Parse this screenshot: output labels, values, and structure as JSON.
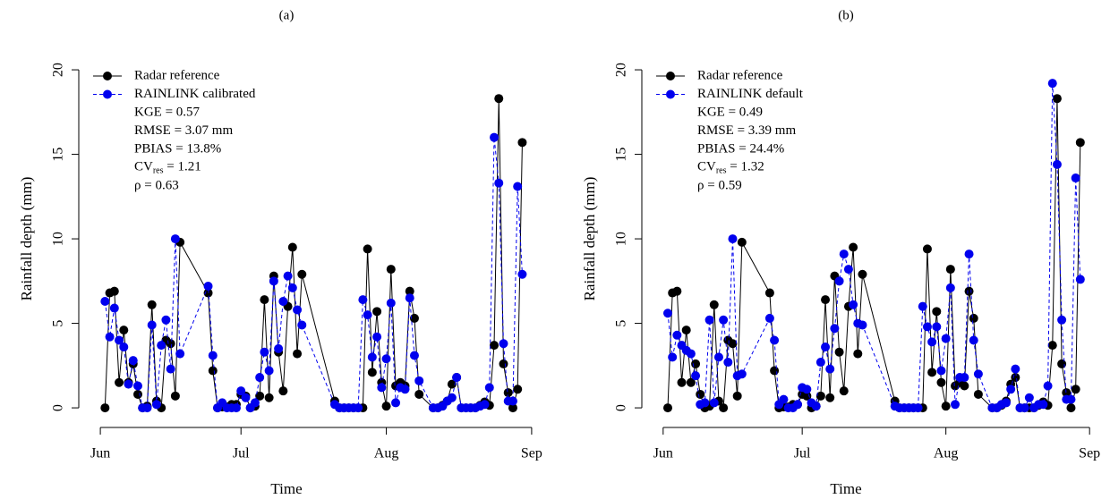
{
  "chart_data": [
    {
      "type": "line",
      "title": "(a)",
      "x_label": "Time",
      "y_label": "Rainfall depth (mm)",
      "x": [
        1,
        2,
        3,
        4,
        5,
        6,
        7,
        8,
        9,
        10,
        11,
        12,
        13,
        14,
        15,
        16,
        17,
        23,
        24,
        25,
        26,
        27,
        28,
        29,
        30,
        31,
        32,
        33,
        34,
        35,
        36,
        37,
        38,
        39,
        40,
        41,
        42,
        43,
        50,
        51,
        52,
        53,
        54,
        55,
        56,
        57,
        58,
        59,
        60,
        61,
        62,
        63,
        64,
        65,
        66,
        67,
        68,
        71,
        72,
        73,
        74,
        75,
        76,
        77,
        78,
        79,
        80,
        81,
        82,
        83,
        84,
        85,
        86,
        87,
        88,
        89,
        90
      ],
      "xlim": [
        -4.6,
        96.6
      ],
      "xticks": [
        {
          "value": 0,
          "label": "Jun"
        },
        {
          "value": 30,
          "label": "Jul"
        },
        {
          "value": 61,
          "label": "Aug"
        },
        {
          "value": 92,
          "label": "Sep"
        }
      ],
      "ylim": [
        -1.16,
        20.85
      ],
      "yticks": [
        0,
        5,
        10,
        15,
        20
      ],
      "legend": "topleft",
      "series": [
        {
          "name": "Radar reference",
          "color": "#000000",
          "dashed": false,
          "values": [
            0,
            6.8,
            6.9,
            1.5,
            4.6,
            1.5,
            2.6,
            0.8,
            0,
            0.1,
            6.1,
            0.4,
            0,
            4.0,
            3.8,
            0.7,
            9.8,
            6.8,
            2.2,
            0,
            0.05,
            0.05,
            0.2,
            0.2,
            0.8,
            0.7,
            0,
            0.1,
            0.7,
            6.4,
            0.6,
            7.8,
            3.3,
            1.0,
            6.0,
            9.5,
            3.2,
            7.9,
            0.4,
            0,
            0,
            0,
            0,
            0,
            0,
            9.4,
            2.1,
            5.7,
            1.5,
            0.1,
            8.2,
            1.3,
            1.5,
            1.3,
            6.9,
            5.3,
            0.8,
            0,
            0,
            0.15,
            0.4,
            1.4,
            1.8,
            0,
            0,
            0,
            0,
            0.15,
            0.35,
            0.15,
            3.7,
            18.3,
            2.6,
            0.9,
            0,
            1.1,
            15.7
          ]
        },
        {
          "name": "RAINLINK calibrated",
          "color": "#0000ee",
          "dashed": true,
          "values": [
            6.3,
            4.2,
            5.9,
            4.0,
            3.6,
            1.4,
            2.8,
            1.3,
            0,
            0,
            4.9,
            0.2,
            3.7,
            5.2,
            2.3,
            10.0,
            3.2,
            7.2,
            3.1,
            0,
            0.3,
            0,
            0,
            0,
            1.0,
            0.6,
            0,
            0.3,
            1.8,
            3.3,
            2.2,
            7.5,
            3.5,
            6.3,
            7.8,
            7.1,
            5.8,
            4.9,
            0.2,
            0,
            0,
            0,
            0,
            0,
            6.4,
            5.5,
            3.0,
            4.2,
            1.2,
            2.9,
            6.2,
            0.3,
            1.2,
            1.1,
            6.5,
            3.1,
            1.6,
            0,
            0,
            0.1,
            0.4,
            0.6,
            1.8,
            0,
            0,
            0,
            0,
            0.1,
            0.2,
            1.2,
            16.0,
            13.3,
            3.8,
            0.4,
            0.4,
            13.1,
            7.9
          ]
        }
      ],
      "stats": [
        {
          "text": "KGE = 0.57"
        },
        {
          "text": "RMSE = 3.07  mm"
        },
        {
          "text": "PBIAS = 13.8%"
        },
        {
          "text": "CV",
          "sub": "res",
          "rest": " = 1.21"
        },
        {
          "text": "ρ = 0.63"
        }
      ]
    },
    {
      "type": "line",
      "title": "(b)",
      "x_label": "Time",
      "y_label": "Rainfall depth (mm)",
      "x": [
        1,
        2,
        3,
        4,
        5,
        6,
        7,
        8,
        9,
        10,
        11,
        12,
        13,
        14,
        15,
        16,
        17,
        23,
        24,
        25,
        26,
        27,
        28,
        29,
        30,
        31,
        32,
        33,
        34,
        35,
        36,
        37,
        38,
        39,
        40,
        41,
        42,
        43,
        50,
        51,
        52,
        53,
        54,
        55,
        56,
        57,
        58,
        59,
        60,
        61,
        62,
        63,
        64,
        65,
        66,
        67,
        68,
        71,
        72,
        73,
        74,
        75,
        76,
        77,
        78,
        79,
        80,
        81,
        82,
        83,
        84,
        85,
        86,
        87,
        88,
        89,
        90
      ],
      "xlim": [
        -4.6,
        96.6
      ],
      "xticks": [
        {
          "value": 0,
          "label": "Jun"
        },
        {
          "value": 30,
          "label": "Jul"
        },
        {
          "value": 61,
          "label": "Aug"
        },
        {
          "value": 92,
          "label": "Sep"
        }
      ],
      "ylim": [
        -1.16,
        20.85
      ],
      "yticks": [
        0,
        5,
        10,
        15,
        20
      ],
      "legend": "topleft",
      "series": [
        {
          "name": "Radar reference",
          "color": "#000000",
          "dashed": false,
          "values": [
            0,
            6.8,
            6.9,
            1.5,
            4.6,
            1.5,
            2.6,
            0.8,
            0,
            0.1,
            6.1,
            0.4,
            0,
            4.0,
            3.8,
            0.7,
            9.8,
            6.8,
            2.2,
            0,
            0.05,
            0.05,
            0.2,
            0.2,
            0.8,
            0.7,
            0,
            0.1,
            0.7,
            6.4,
            0.6,
            7.8,
            3.3,
            1.0,
            6.0,
            9.5,
            3.2,
            7.9,
            0.4,
            0,
            0,
            0,
            0,
            0,
            0,
            9.4,
            2.1,
            5.7,
            1.5,
            0.1,
            8.2,
            1.3,
            1.5,
            1.3,
            6.9,
            5.3,
            0.8,
            0,
            0,
            0.15,
            0.4,
            1.4,
            1.8,
            0,
            0,
            0,
            0,
            0.15,
            0.35,
            0.15,
            3.7,
            18.3,
            2.6,
            0.9,
            0,
            1.1,
            15.7
          ]
        },
        {
          "name": "RAINLINK default",
          "color": "#0000ee",
          "dashed": true,
          "values": [
            5.6,
            3.0,
            4.3,
            3.7,
            3.4,
            3.2,
            1.9,
            0.2,
            0.3,
            5.2,
            0.3,
            3.0,
            5.2,
            2.7,
            10.0,
            1.9,
            2.0,
            5.3,
            4.0,
            0.2,
            0.5,
            0,
            0,
            0.2,
            1.2,
            1.1,
            0.3,
            0.1,
            2.7,
            3.6,
            2.3,
            4.7,
            7.5,
            9.1,
            8.2,
            6.1,
            5.0,
            4.9,
            0.1,
            0,
            0,
            0,
            0,
            0,
            6.0,
            4.8,
            3.9,
            4.8,
            2.2,
            4.1,
            7.1,
            0.2,
            1.8,
            1.8,
            9.1,
            4.0,
            2.0,
            0,
            0,
            0.2,
            0.3,
            1.1,
            2.3,
            0,
            0,
            0.6,
            0,
            0.2,
            0.2,
            1.3,
            19.2,
            14.4,
            5.2,
            0.5,
            0.5,
            13.6,
            7.6
          ]
        }
      ],
      "stats": [
        {
          "text": "KGE = 0.49"
        },
        {
          "text": "RMSE = 3.39  mm"
        },
        {
          "text": "PBIAS = 24.4%"
        },
        {
          "text": "CV",
          "sub": "res",
          "rest": " = 1.32"
        },
        {
          "text": "ρ = 0.59"
        }
      ]
    }
  ]
}
